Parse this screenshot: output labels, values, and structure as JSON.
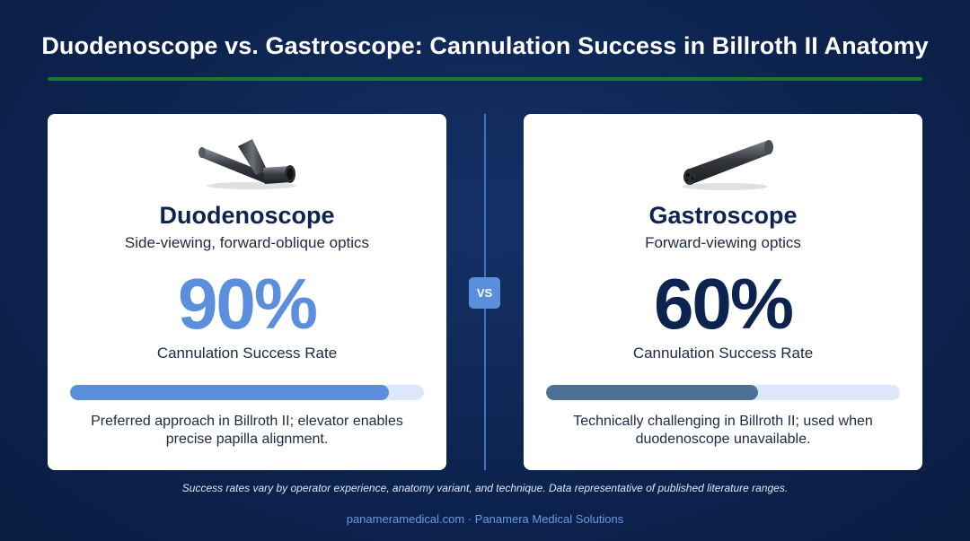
{
  "title": "Duodenoscope vs. Gastroscope: Cannulation Success in Billroth II Anatomy",
  "vs_label": "VS",
  "cards": [
    {
      "name": "Duodenoscope",
      "subtitle": "Side-viewing, forward-oblique optics",
      "value_text": "90%",
      "success_rate": 0.9,
      "metric_label": "Cannulation Success Rate",
      "note": "Preferred approach in Billroth II; elevator enables precise papilla alignment.",
      "image_icon": "duodenoscope-tip-image",
      "accent_color": "#5b8fdd"
    },
    {
      "name": "Gastroscope",
      "subtitle": "Forward-viewing optics",
      "value_text": "60%",
      "success_rate": 0.6,
      "metric_label": "Cannulation Success Rate",
      "note": "Technically challenging in Billroth II; used when duodenoscope unavailable.",
      "image_icon": "gastroscope-tip-image",
      "accent_color": "#0d2450"
    }
  ],
  "footnote": "Success rates vary by operator experience, anatomy variant, and technique. Data representative of published literature ranges.",
  "footer": "panameramedical.com · Panamera Medical Solutions",
  "colors": {
    "background": "#0d2450",
    "title_rule": "#1a7a2e",
    "divider": "#3f72c9",
    "vs_badge": "#5b8fdd",
    "footer_text": "#6b9ae0"
  }
}
